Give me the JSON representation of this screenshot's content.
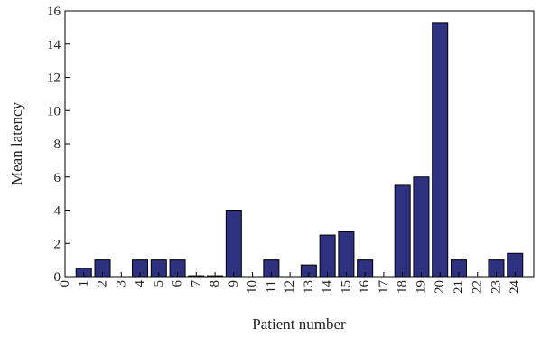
{
  "chart_data": {
    "type": "bar",
    "title": "",
    "xlabel": "Patient number",
    "ylabel": "Mean latency",
    "xlim": [
      0,
      25
    ],
    "ylim": [
      0,
      16
    ],
    "x_ticks": [
      "0",
      "1",
      "2",
      "3",
      "4",
      "5",
      "6",
      "7",
      "8",
      "9",
      "10",
      "11",
      "12",
      "13",
      "14",
      "15",
      "16",
      "17",
      "18",
      "19",
      "20",
      "21",
      "22",
      "23",
      "24"
    ],
    "y_ticks": [
      "0",
      "2",
      "4",
      "6",
      "8",
      "10",
      "12",
      "14",
      "16"
    ],
    "categories": [
      "1",
      "2",
      "3",
      "4",
      "5",
      "6",
      "7",
      "8",
      "9",
      "10",
      "11",
      "12",
      "13",
      "14",
      "15",
      "16",
      "17",
      "18",
      "19",
      "20",
      "21",
      "22",
      "23",
      "24"
    ],
    "values": [
      0.5,
      1.0,
      0,
      1.0,
      1.0,
      1.0,
      0.05,
      0.05,
      4.0,
      0,
      1.0,
      0,
      0.7,
      2.5,
      2.7,
      1.0,
      0,
      5.5,
      6.0,
      15.3,
      1.0,
      0,
      1.0,
      1.4
    ],
    "bar_color": "#2e3180",
    "grid": false
  }
}
